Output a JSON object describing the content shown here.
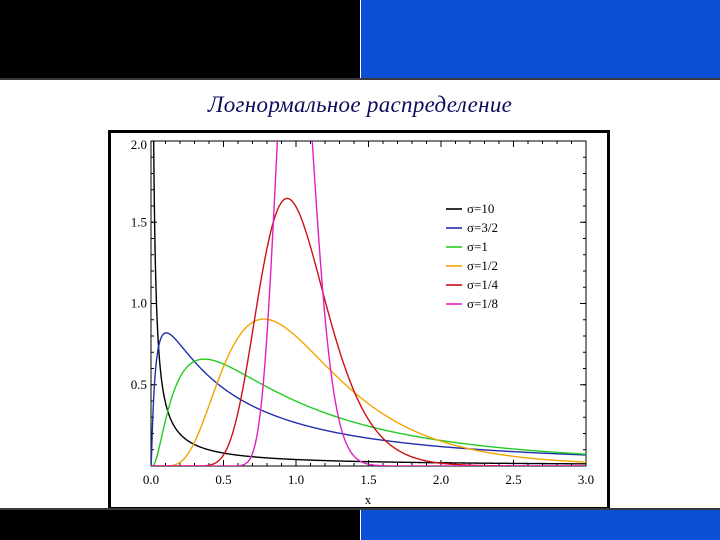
{
  "slide": {
    "title": "Логнормальное распределение"
  },
  "colors": {
    "top_left_bar": "#000000",
    "top_right_bar": "#0a4fd6",
    "title_text": "#0d0d5c"
  },
  "chart_data": {
    "type": "line",
    "title": "",
    "xlabel": "x",
    "ylabel": "",
    "xlim": [
      0,
      3.0
    ],
    "ylim": [
      0,
      2.0
    ],
    "x_ticks": [
      "0.0",
      "0.5",
      "1.0",
      "1.5",
      "2.0",
      "2.5",
      "3.0"
    ],
    "y_ticks": [
      "0.5",
      "1.0",
      "1.5",
      "2.0"
    ],
    "grid": false,
    "legend_position": "right",
    "series": [
      {
        "name": "σ=10",
        "sigma": 10,
        "color": "#000000"
      },
      {
        "name": "σ=3/2",
        "sigma": 1.5,
        "color": "#1f2fb0"
      },
      {
        "name": "σ=1",
        "sigma": 1,
        "color": "#22cc22"
      },
      {
        "name": "σ=1/2",
        "sigma": 0.5,
        "color": "#f2a500"
      },
      {
        "name": "σ=1/4",
        "sigma": 0.25,
        "color": "#cc1111"
      },
      {
        "name": "σ=1/8",
        "sigma": 0.125,
        "color": "#e020c0"
      }
    ]
  }
}
